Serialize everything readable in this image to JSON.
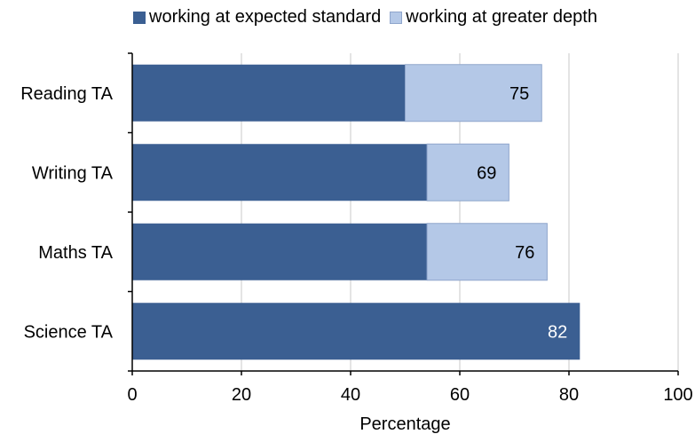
{
  "chart_data": {
    "type": "bar",
    "orientation": "horizontal",
    "stacked": true,
    "categories": [
      "Reading TA",
      "Writing TA",
      "Maths TA",
      "Science TA"
    ],
    "series": [
      {
        "name": "working at expected standard",
        "color": "#3b5f92",
        "values": [
          50,
          54,
          54,
          82
        ]
      },
      {
        "name": "working at greater depth",
        "color": "#b4c8e7",
        "values": [
          25,
          15,
          22,
          0
        ]
      }
    ],
    "data_labels": [
      "75",
      "69",
      "76",
      "82"
    ],
    "xlabel": "Percentage",
    "ylabel": "",
    "xlim": [
      0,
      100
    ],
    "xticks": [
      0,
      20,
      40,
      60,
      80,
      100
    ],
    "grid": "vertical",
    "legend_position": "top"
  }
}
